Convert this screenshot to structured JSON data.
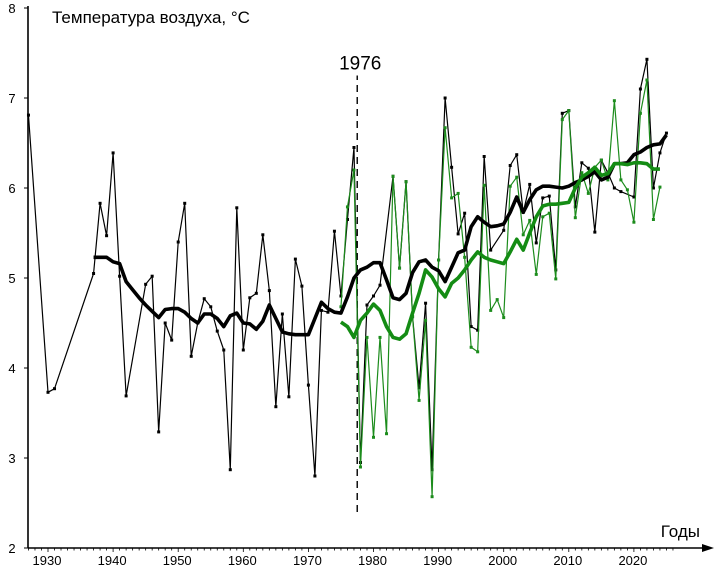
{
  "chart_data": {
    "type": "line",
    "title": "Температура воздуха, °C",
    "xlabel": "Годы",
    "ylabel": "Температура воздуха, °C",
    "xlim": [
      1926,
      2029
    ],
    "ylim": [
      2,
      8
    ],
    "x_ticks": [
      1930,
      1940,
      1950,
      1960,
      1970,
      1980,
      1990,
      2000,
      2010,
      2020
    ],
    "y_ticks": [
      2,
      3,
      4,
      5,
      6,
      7,
      8
    ],
    "grid": false,
    "marker": {
      "label": "1976",
      "position_year": 1977.5,
      "from": 2.4,
      "to": 7.25
    },
    "series": [
      {
        "name": "annual-black",
        "color": "#000000",
        "style": "thin",
        "x": [
          1927,
          1930,
          1931,
          1937,
          1938,
          1939,
          1940,
          1941,
          1942,
          1945,
          1946,
          1947,
          1948,
          1949,
          1950,
          1951,
          1952,
          1953,
          1954,
          1955,
          1956,
          1957,
          1958,
          1959,
          1960,
          1961,
          1962,
          1963,
          1964,
          1965,
          1966,
          1967,
          1968,
          1969,
          1970,
          1971,
          1972,
          1973,
          1974,
          1975,
          1976,
          1977,
          1978,
          1979,
          1980,
          1981,
          1983,
          1984,
          1985,
          1986,
          1987,
          1988,
          1989,
          1990,
          1991,
          1992,
          1993,
          1994,
          1995,
          1996,
          1997,
          1998,
          2000,
          2001,
          2002,
          2003,
          2004,
          2005,
          2006,
          2007,
          2008,
          2009,
          2010,
          2011,
          2012,
          2013,
          2014,
          2015,
          2016,
          2017,
          2018,
          2020,
          2021,
          2022,
          2023,
          2024,
          2025
        ],
        "y": [
          6.81,
          3.73,
          3.77,
          5.05,
          5.83,
          5.47,
          6.39,
          5.02,
          3.69,
          4.93,
          5.02,
          3.29,
          4.5,
          4.31,
          5.4,
          5.83,
          4.13,
          4.5,
          4.77,
          4.68,
          4.41,
          4.2,
          2.87,
          5.78,
          4.2,
          4.78,
          4.83,
          5.48,
          4.86,
          3.57,
          4.6,
          3.68,
          5.21,
          4.91,
          3.81,
          2.8,
          4.64,
          4.62,
          5.52,
          4.8,
          5.65,
          6.45,
          2.95,
          4.7,
          4.8,
          4.92,
          6.13,
          5.11,
          6.07,
          4.57,
          3.78,
          4.72,
          2.87,
          5.2,
          7.0,
          6.23,
          5.49,
          5.72,
          4.46,
          4.42,
          6.35,
          5.31,
          5.53,
          6.25,
          6.37,
          5.73,
          6.04,
          5.39,
          5.89,
          5.91,
          5.09,
          6.83,
          6.86,
          5.79,
          6.28,
          6.22,
          5.51,
          6.31,
          6.17,
          6.0,
          5.96,
          5.9,
          7.1,
          7.43,
          6.0,
          6.39,
          6.61
        ]
      },
      {
        "name": "annual-green",
        "color": "#1c8c1c",
        "style": "thin",
        "x": [
          1975,
          1976,
          1977,
          1978,
          1979,
          1980,
          1981,
          1982,
          1983,
          1984,
          1985,
          1986,
          1987,
          1988,
          1989,
          1990,
          1991,
          1992,
          1993,
          1994,
          1995,
          1996,
          1997,
          1998,
          1999,
          2000,
          2001,
          2002,
          2003,
          2004,
          2005,
          2006,
          2007,
          2008,
          2009,
          2010,
          2011,
          2012,
          2013,
          2014,
          2015,
          2016,
          2017,
          2018,
          2019,
          2020,
          2021,
          2022,
          2023,
          2024
        ],
        "y": [
          4.68,
          5.79,
          6.2,
          2.9,
          4.34,
          3.23,
          4.34,
          3.27,
          6.13,
          5.11,
          6.07,
          4.57,
          3.64,
          4.53,
          2.57,
          5.2,
          6.67,
          5.89,
          5.94,
          5.23,
          4.23,
          4.18,
          6.03,
          4.64,
          4.76,
          4.56,
          6.02,
          6.12,
          5.48,
          5.64,
          5.04,
          5.68,
          5.72,
          4.99,
          6.76,
          6.86,
          5.67,
          6.17,
          5.94,
          6.23,
          6.31,
          6.09,
          6.97,
          6.09,
          5.98,
          5.62,
          6.83,
          7.2,
          5.65,
          6.01
        ]
      },
      {
        "name": "smoothed-black",
        "color": "#000000",
        "style": "thick",
        "x_start": 1937,
        "y": [
          5.23,
          5.23,
          5.23,
          5.18,
          5.16,
          4.96,
          4.87,
          4.78,
          4.7,
          4.63,
          4.56,
          4.65,
          4.66,
          4.66,
          4.62,
          4.55,
          4.5,
          4.6,
          4.6,
          4.55,
          4.46,
          4.58,
          4.61,
          4.5,
          4.49,
          4.43,
          4.52,
          4.7,
          4.55,
          4.4,
          4.38,
          4.37,
          4.37,
          4.37,
          4.55,
          4.73,
          4.66,
          4.62,
          4.61,
          4.79,
          5.0,
          5.09,
          5.12,
          5.17,
          5.17,
          4.98,
          4.78,
          4.76,
          4.83,
          5.06,
          5.18,
          5.2,
          5.12,
          5.08,
          4.96,
          5.12,
          5.28,
          5.31,
          5.57,
          5.68,
          5.62,
          5.57,
          5.58,
          5.6,
          5.73,
          5.9,
          5.73,
          5.87,
          5.98,
          6.02,
          6.02,
          6.01,
          6.0,
          6.02,
          6.06,
          6.09,
          6.13,
          6.18,
          6.09,
          6.12,
          6.27,
          6.27,
          6.28,
          6.37,
          6.4,
          6.45,
          6.48,
          6.49,
          6.59
        ]
      },
      {
        "name": "smoothed-green",
        "color": "#148c14",
        "style": "thick",
        "x_start": 1975,
        "y": [
          4.51,
          4.46,
          4.34,
          4.53,
          4.61,
          4.71,
          4.64,
          4.46,
          4.34,
          4.32,
          4.38,
          4.61,
          4.83,
          5.09,
          5.01,
          4.88,
          4.79,
          4.94,
          5.0,
          5.09,
          5.2,
          5.29,
          5.23,
          5.2,
          5.18,
          5.16,
          5.29,
          5.43,
          5.31,
          5.5,
          5.68,
          5.8,
          5.82,
          5.82,
          5.83,
          5.84,
          6.0,
          6.12,
          6.17,
          6.23,
          6.14,
          6.16,
          6.27,
          6.27,
          6.26,
          6.28,
          6.28,
          6.27,
          6.21,
          6.21
        ]
      }
    ]
  }
}
